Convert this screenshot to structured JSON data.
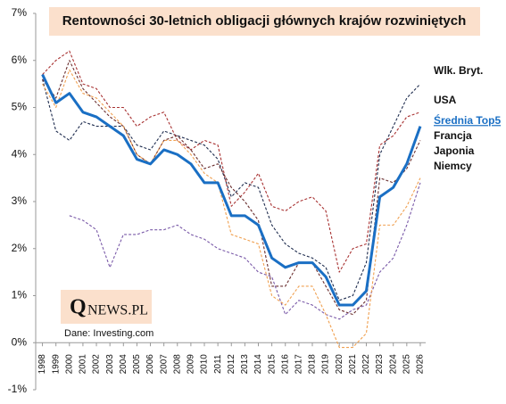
{
  "chart_data": {
    "type": "line",
    "title": "Rentowności 30-letnich obligacji głównych krajów rozwiniętych",
    "logo": {
      "initial": "Q",
      "rest": "NEWS.PL"
    },
    "source": "Dane: Investing.com",
    "x": [
      1998,
      1999,
      2000,
      2001,
      2002,
      2003,
      2004,
      2005,
      2006,
      2007,
      2008,
      2009,
      2010,
      2011,
      2012,
      2013,
      2014,
      2015,
      2016,
      2017,
      2018,
      2019,
      2020,
      2021,
      2022,
      2023,
      2024,
      2025,
      2026
    ],
    "xlim": [
      1997.5,
      2026.4
    ],
    "xticks": [
      1998,
      1999,
      2000,
      2001,
      2002,
      2003,
      2004,
      2005,
      2006,
      2007,
      2008,
      2009,
      2010,
      2011,
      2012,
      2013,
      2014,
      2015,
      2016,
      2017,
      2018,
      2019,
      2020,
      2021,
      2022,
      2023,
      2024,
      2025,
      2026
    ],
    "ylim": [
      -1,
      7
    ],
    "yticks": [
      {
        "value": -1,
        "label": "-1%"
      },
      {
        "value": 0,
        "label": "0%"
      },
      {
        "value": 1,
        "label": "1%"
      },
      {
        "value": 2,
        "label": "2%"
      },
      {
        "value": 3,
        "label": "3%"
      },
      {
        "value": 4,
        "label": "4%"
      },
      {
        "value": 5,
        "label": "5%"
      },
      {
        "value": 6,
        "label": "6%"
      },
      {
        "value": 7,
        "label": "7%"
      }
    ],
    "series": [
      {
        "name": "Wlk. Bryt.",
        "color": "#1f2d4f",
        "dashed": true,
        "width": 1.1,
        "values": [
          5.6,
          4.5,
          4.3,
          4.7,
          4.6,
          4.6,
          4.6,
          4.2,
          4.1,
          4.5,
          4.4,
          4.3,
          4.2,
          3.9,
          3.1,
          3.4,
          3.3,
          2.5,
          2.1,
          1.9,
          1.8,
          1.6,
          0.9,
          1.0,
          1.7,
          4.0,
          4.6,
          5.2,
          5.5
        ]
      },
      {
        "name": "USA",
        "color": "#a83232",
        "dashed": true,
        "width": 1.1,
        "values": [
          5.7,
          6.0,
          6.2,
          5.5,
          5.4,
          5.0,
          5.0,
          4.6,
          4.8,
          4.9,
          4.3,
          4.1,
          4.3,
          4.2,
          2.9,
          3.2,
          3.6,
          2.9,
          2.8,
          3.0,
          3.1,
          2.8,
          1.5,
          2.0,
          2.1,
          4.2,
          4.4,
          4.8,
          4.9
        ]
      },
      {
        "name": "Średnia Top5",
        "color": "#1a6fc4",
        "dashed": false,
        "width": 3,
        "values": [
          5.7,
          5.1,
          5.3,
          4.9,
          4.8,
          4.6,
          4.4,
          3.9,
          3.8,
          4.1,
          4.0,
          3.8,
          3.4,
          3.4,
          2.7,
          2.7,
          2.5,
          1.8,
          1.6,
          1.7,
          1.7,
          1.4,
          0.8,
          0.8,
          1.1,
          3.1,
          3.3,
          3.8,
          4.6
        ]
      },
      {
        "name": "Francja",
        "color": "#6b2f2f",
        "dashed": true,
        "width": 1.1,
        "values": [
          5.6,
          5.2,
          6.0,
          5.4,
          5.1,
          4.8,
          4.6,
          4.0,
          3.8,
          4.3,
          4.4,
          4.1,
          3.7,
          3.8,
          3.3,
          3.0,
          2.6,
          1.2,
          1.2,
          1.7,
          1.7,
          1.2,
          0.7,
          0.6,
          0.9,
          3.5,
          3.4,
          3.7,
          4.3
        ]
      },
      {
        "name": "Japonia",
        "color": "#7a5aa8",
        "dashed": true,
        "width": 1.1,
        "values": [
          null,
          null,
          2.7,
          2.6,
          2.4,
          1.6,
          2.3,
          2.3,
          2.4,
          2.4,
          2.5,
          2.3,
          2.2,
          2.0,
          1.9,
          1.8,
          1.5,
          1.4,
          0.6,
          0.9,
          0.8,
          0.6,
          0.5,
          0.7,
          0.8,
          1.5,
          1.8,
          2.5,
          3.4
        ]
      },
      {
        "name": "Niemcy",
        "color": "#f0a050",
        "dashed": true,
        "width": 1.1,
        "values": [
          5.5,
          5.0,
          5.8,
          5.3,
          5.2,
          4.9,
          4.6,
          4.0,
          3.8,
          4.3,
          4.3,
          4.0,
          3.6,
          3.4,
          2.3,
          2.2,
          2.1,
          1.0,
          0.8,
          1.2,
          1.2,
          0.6,
          -0.1,
          -0.1,
          0.2,
          2.5,
          2.5,
          2.9,
          3.5
        ]
      }
    ]
  }
}
